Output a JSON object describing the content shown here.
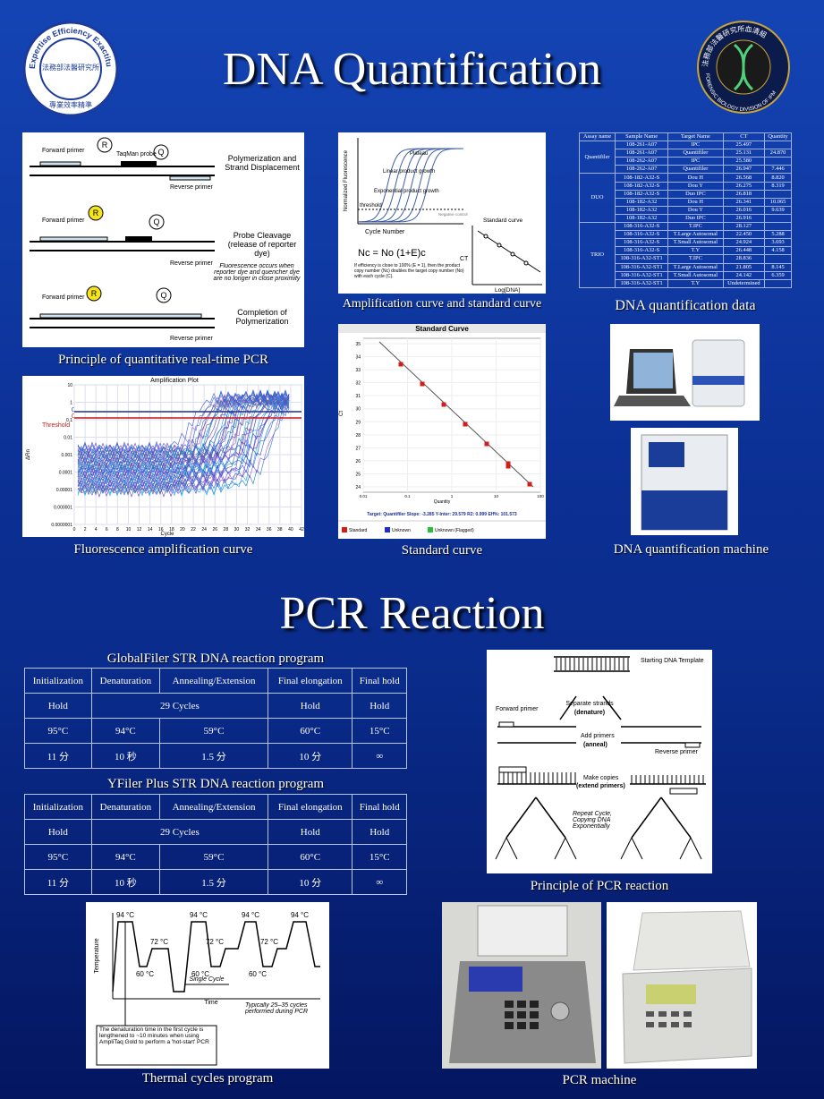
{
  "header": {
    "title": "DNA Quantification",
    "left_logo": {
      "ring_text": "Expertise Efficiency Exactitude",
      "center_text": "法務部法醫研究所",
      "bottom_text": "專業效率精準"
    },
    "right_logo": {
      "ring_text": "法務部法醫研究所血清組",
      "bottom_text": "FORENSIC BIOLOGY DIVISION OF IFM"
    }
  },
  "qpcr_principle": {
    "caption": "Principle of quantitative real-time PCR",
    "forward_primer": "Forward primer",
    "reverse_primer": "Reverse primer",
    "probe": "TaqMan probe",
    "reporter": "R",
    "quencher": "Q",
    "steps": [
      "Polymerization and Strand Displacement",
      "Probe Cleavage (release of reporter dye)",
      "Completion of Polymerization"
    ],
    "note": "Fluorescence occurs when reporter dye and quencher dye are no longer in close proximity"
  },
  "amplification_curve": {
    "caption": "Amplification curve and standard curve",
    "y_label": "Normalized Fluorescence",
    "x_label": "Cycle Number",
    "plateau": "Plateau",
    "linear": "Linear product growth",
    "exponential": "Exponential product growth",
    "threshold": "threshold",
    "negative": "Negative control",
    "standard": "Standard curve",
    "log_label": "Log[DNA]",
    "ct": "CT",
    "formula": "Nc = No (1+E)c",
    "note": "If efficiency is close to 100% (E = 1), then the product copy number (Nc) doubles the target copy number (No) with each cycle (C)."
  },
  "quant_table": {
    "caption": "DNA quantification data",
    "headers": [
      "Assay name",
      "Sample Name",
      "Target Name",
      "CT",
      "Quantity"
    ],
    "groups": [
      {
        "assay": "Quantifiler",
        "rows": [
          {
            "sample": "108-261-A07",
            "target": "IPC",
            "ct": "25.497"
          },
          {
            "sample": "108-261-A07",
            "target": "Quantifiler",
            "ct": "25.131",
            "quantity": "24.870"
          },
          {
            "sample": "108-262-A07",
            "target": "IPC",
            "ct": "25.580"
          },
          {
            "sample": "108-262-A07",
            "target": "Quantifiler",
            "ct": "26.947",
            "quantity": "7.446"
          }
        ]
      },
      {
        "assay": "DUO",
        "rows": [
          {
            "sample": "108-182-A32-S",
            "target": "Dou H",
            "ct": "26.568",
            "quantity": "8.820"
          },
          {
            "sample": "108-182-A32-S",
            "target": "Dou Y",
            "ct": "26.275",
            "quantity": "8.319"
          },
          {
            "sample": "108-182-A32-S",
            "target": "Duo IPC",
            "ct": "26.818"
          },
          {
            "sample": "108-182-A32",
            "target": "Dou H",
            "ct": "26.341",
            "quantity": "10.065"
          },
          {
            "sample": "108-182-A32",
            "target": "Dou Y",
            "ct": "26.016",
            "quantity": "9.639"
          },
          {
            "sample": "108-182-A32",
            "target": "Duo IPC",
            "ct": "26.916"
          }
        ]
      },
      {
        "assay": "TRIO",
        "rows": [
          {
            "sample": "108-316-A32-S",
            "target": "T.IPC",
            "ct": "28.127"
          },
          {
            "sample": "108-316-A32-S",
            "target": "T.Large Autosomal",
            "ct": "22.450",
            "quantity": "5.288"
          },
          {
            "sample": "108-316-A32-S",
            "target": "T.Small Autosomal",
            "ct": "24.924",
            "quantity": "3.693"
          },
          {
            "sample": "108-316-A32-S",
            "target": "T.Y",
            "ct": "26.448",
            "quantity": "4.158"
          },
          {
            "sample": "108-316-A32-ST1",
            "target": "T.IPC",
            "ct": "28.836"
          },
          {
            "sample": "108-316-A32-ST1",
            "target": "T.Large Autosomal",
            "ct": "21.805",
            "quantity": "8.145"
          },
          {
            "sample": "108-316-A32-ST1",
            "target": "T.Small Autosomal",
            "ct": "24.142",
            "quantity": "6.359"
          },
          {
            "sample": "108-316-A32-ST1",
            "target": "T.Y",
            "ct": "Undetermined"
          }
        ]
      }
    ]
  },
  "fluorescence_plot": {
    "caption": "Fluorescence amplification curve",
    "title": "Amplification Plot",
    "x_label": "Cycle",
    "y_label": "ΔRn",
    "threshold": "Threshold",
    "level_high": "0.2",
    "level_low": "0.1",
    "yticks": [
      "10",
      "1",
      "0.1",
      "0.01",
      "0.001",
      "0.0001",
      "0.00001",
      "0.000001",
      "0.0000001"
    ],
    "xticks": [
      "0",
      "2",
      "4",
      "6",
      "8",
      "10",
      "12",
      "14",
      "16",
      "18",
      "20",
      "22",
      "24",
      "26",
      "28",
      "30",
      "32",
      "34",
      "36",
      "38",
      "40",
      "42"
    ]
  },
  "standard_curve": {
    "caption": "Standard curve",
    "title": "Standard Curve",
    "y_label": "Ct",
    "x_label": "Quantity",
    "yticks": [
      "35",
      "34",
      "33",
      "32",
      "31",
      "30",
      "29",
      "28",
      "27",
      "26",
      "25",
      "24"
    ],
    "xticks": [
      "0.01",
      "0.1",
      "1",
      "10",
      "100"
    ],
    "footer": "Target: Quantifiler  Slope: -3.285  Y-Inter: 29.579  R2: 0.999  Eff%: 101.573",
    "legend": [
      "Standard",
      "Unknown",
      "Unknown (Flagged)"
    ]
  },
  "machine": {
    "caption": "DNA quantification machine"
  },
  "pcr": {
    "title": "PCR Reaction",
    "tables": [
      {
        "caption": "GlobalFiler STR DNA reaction program",
        "headers": [
          "Initialization",
          "Denaturation",
          "Annealing/Extension",
          "Final elongation",
          "Final hold"
        ],
        "rows": [
          [
            "Hold",
            "29 Cycles",
            "Hold",
            "Hold"
          ],
          [
            "95°C",
            "94°C",
            "59°C",
            "60°C",
            "15°C"
          ],
          [
            "11 分",
            "10 秒",
            "1.5 分",
            "10 分",
            "∞"
          ]
        ]
      },
      {
        "caption": "YFiler Plus STR DNA reaction program",
        "headers": [
          "Initialization",
          "Denaturation",
          "Annealing/Extension",
          "Final elongation",
          "Final hold"
        ],
        "rows": [
          [
            "Hold",
            "29 Cycles",
            "Hold",
            "Hold"
          ],
          [
            "95°C",
            "94°C",
            "59°C",
            "60°C",
            "15°C"
          ],
          [
            "11 分",
            "10 秒",
            "1.5 分",
            "10 分",
            "∞"
          ]
        ]
      }
    ],
    "principle": {
      "caption": "Principle of PCR reaction",
      "template": "Starting DNA Template",
      "separate": "Separate strands",
      "denature": "(denature)",
      "forward": "Forward primer",
      "add": "Add primers",
      "anneal": "(anneal)",
      "reverse": "Reverse primer",
      "copies": "Make copies",
      "extend": "(extend primers)",
      "repeat": "Repeat Cycle, Copying DNA Exponentially"
    },
    "thermal": {
      "caption": "Thermal cycles program",
      "y_label": "Temperature",
      "x_label": "Time",
      "denature_temp": "94 °C",
      "extend_temp": "72 °C",
      "anneal_temp": "60 °C",
      "single_cycle": "Single Cycle",
      "cycles_note": "Typically 25–35 cycles performed during PCR",
      "hotstart_note": "The denaturation time in the first cycle is lengthened to ~10 minutes when using AmpliTaq Gold to perform a 'hot-start' PCR"
    },
    "machine_caption": "PCR machine"
  }
}
